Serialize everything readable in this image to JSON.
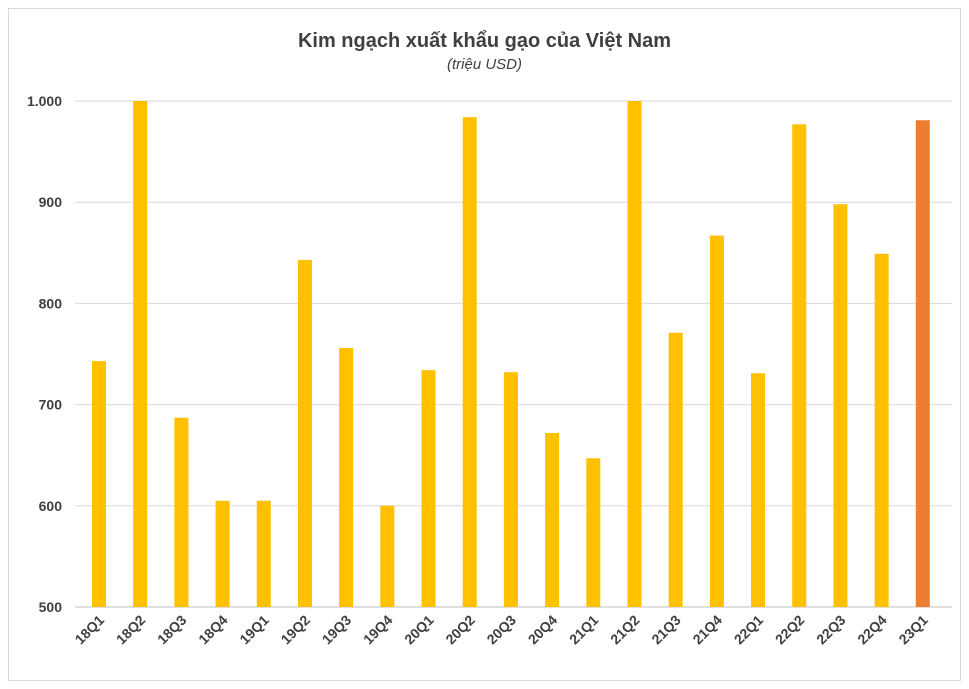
{
  "chart_data": {
    "type": "bar",
    "title": "Kim ngạch xuất khẩu gạo của Việt Nam",
    "subtitle": "(triệu USD)",
    "xlabel": "",
    "ylabel": "",
    "ylim": [
      500,
      1000
    ],
    "yticks": [
      500,
      600,
      700,
      800,
      900,
      1000
    ],
    "ytick_labels": [
      "500",
      "600",
      "700",
      "800",
      "900",
      "1.000"
    ],
    "grid": true,
    "legend": "none",
    "categories": [
      "18Q1",
      "18Q2",
      "18Q3",
      "18Q4",
      "19Q1",
      "19Q2",
      "19Q3",
      "19Q4",
      "20Q1",
      "20Q2",
      "20Q3",
      "20Q4",
      "21Q1",
      "21Q2",
      "21Q3",
      "21Q4",
      "22Q1",
      "22Q2",
      "22Q3",
      "22Q4",
      "23Q1"
    ],
    "values": [
      743,
      1000,
      687,
      605,
      605,
      843,
      756,
      600,
      734,
      984,
      732,
      672,
      647,
      1000,
      771,
      867,
      731,
      977,
      898,
      849,
      981
    ],
    "colors": {
      "default_bar": "#FFC000",
      "highlight_bar": "#ED7D31",
      "highlight_category": "23Q1",
      "grid": "#d9d9d9",
      "axis": "#bfbfbf",
      "text": "#404040"
    }
  }
}
